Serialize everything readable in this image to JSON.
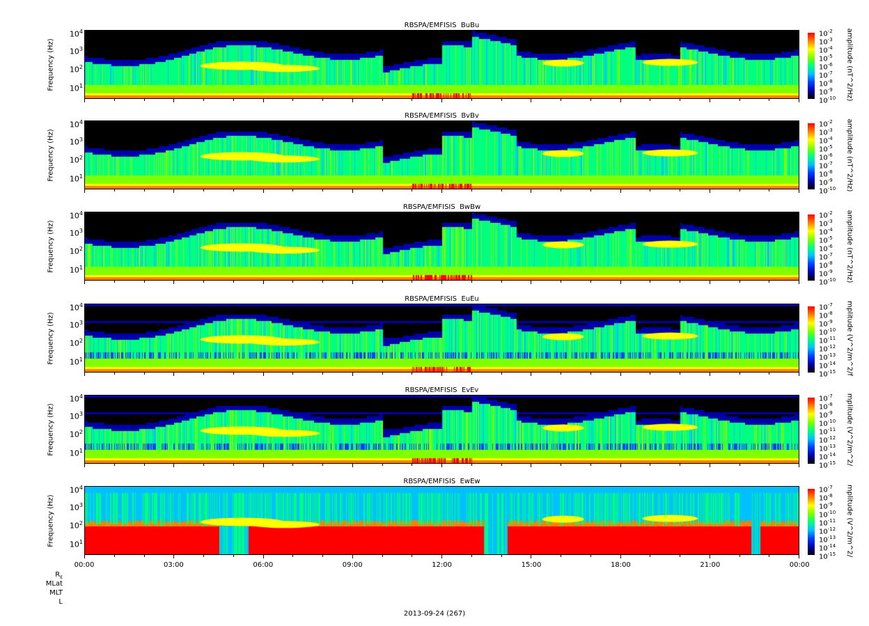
{
  "chart_data": [
    {
      "type": "heatmap",
      "title": "RBSPA/EMFISIS  BuBu",
      "ylabel": "Frequency (Hz)",
      "zlabel": "amplitude (nT^2/Hz)",
      "yscale": "log",
      "yticks": [
        "10^1",
        "10^2",
        "10^3",
        "10^4"
      ],
      "zticks": [
        "10^-2",
        "10^-3",
        "10^-4",
        "10^-5",
        "10^-6",
        "10^-7",
        "10^-8",
        "10^-9",
        "10^-10"
      ],
      "component": "B"
    },
    {
      "type": "heatmap",
      "title": "RBSPA/EMFISIS  BvBv",
      "ylabel": "Frequency (Hz)",
      "zlabel": "amplitude (nT^2/Hz)",
      "yscale": "log",
      "yticks": [
        "10^1",
        "10^2",
        "10^3",
        "10^4"
      ],
      "zticks": [
        "10^-2",
        "10^-3",
        "10^-4",
        "10^-5",
        "10^-6",
        "10^-7",
        "10^-8",
        "10^-9",
        "10^-10"
      ],
      "component": "B"
    },
    {
      "type": "heatmap",
      "title": "RBSPA/EMFISIS  BwBw",
      "ylabel": "Frequency (Hz)",
      "zlabel": "amplitude (nT^2/Hz)",
      "yscale": "log",
      "yticks": [
        "10^1",
        "10^2",
        "10^3",
        "10^4"
      ],
      "zticks": [
        "10^-2",
        "10^-3",
        "10^-4",
        "10^-5",
        "10^-6",
        "10^-7",
        "10^-8",
        "10^-9",
        "10^-10"
      ],
      "component": "B"
    },
    {
      "type": "heatmap",
      "title": "RBSPA/EMFISIS  EuEu",
      "ylabel": "Frequency (Hz)",
      "zlabel": "mplitude (V^2/m^2/f",
      "yscale": "log",
      "yticks": [
        "10^1",
        "10^2",
        "10^3",
        "10^4"
      ],
      "zticks": [
        "10^-7",
        "10^-8",
        "10^-9",
        "10^-10",
        "10^-11",
        "10^-12",
        "10^-13",
        "10^-14",
        "10^-15"
      ],
      "component": "E"
    },
    {
      "type": "heatmap",
      "title": "RBSPA/EMFISIS  EvEv",
      "ylabel": "Frequency (Hz)",
      "zlabel": "mplitude (V^2/m^2/",
      "yscale": "log",
      "yticks": [
        "10^1",
        "10^2",
        "10^3",
        "10^4"
      ],
      "zticks": [
        "10^-7",
        "10^-8",
        "10^-9",
        "10^-10",
        "10^-11",
        "10^-12",
        "10^-13",
        "10^-14",
        "10^-15"
      ],
      "component": "E"
    },
    {
      "type": "heatmap",
      "title": "RBSPA/EMFISIS  EwEw",
      "ylabel": "Frequency (Hz)",
      "zlabel": "mplitude (V^2/m^2/",
      "yscale": "log",
      "yticks": [
        "10^1",
        "10^2",
        "10^3",
        "10^4"
      ],
      "zticks": [
        "10^-7",
        "10^-8",
        "10^-9",
        "10^-10",
        "10^-11",
        "10^-12",
        "10^-13",
        "10^-14",
        "10^-15"
      ],
      "component": "Ew"
    }
  ],
  "x_axis": {
    "ticks": [
      "00:00",
      "03:00",
      "06:00",
      "09:00",
      "12:00",
      "15:00",
      "18:00",
      "21:00",
      "00:00"
    ],
    "row_labels": [
      "R_E",
      "MLat",
      "MLT",
      "L"
    ],
    "date": "2013-09-24 (267)"
  },
  "colors": {
    "colormap": [
      "#000000",
      "#0000aa",
      "#0040ff",
      "#00c0ff",
      "#00ff80",
      "#80ff00",
      "#ffff00",
      "#ff8000",
      "#ff0000"
    ]
  }
}
